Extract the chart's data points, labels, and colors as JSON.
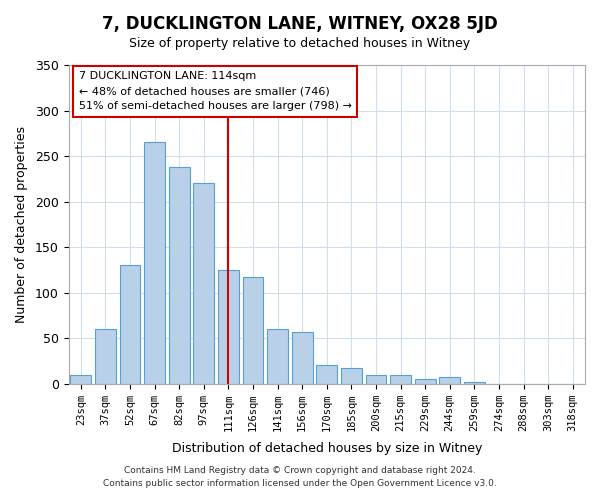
{
  "title": "7, DUCKLINGTON LANE, WITNEY, OX28 5JD",
  "subtitle": "Size of property relative to detached houses in Witney",
  "xlabel": "Distribution of detached houses by size in Witney",
  "ylabel": "Number of detached properties",
  "bar_labels": [
    "23sqm",
    "37sqm",
    "52sqm",
    "67sqm",
    "82sqm",
    "97sqm",
    "111sqm",
    "126sqm",
    "141sqm",
    "156sqm",
    "170sqm",
    "185sqm",
    "200sqm",
    "215sqm",
    "229sqm",
    "244sqm",
    "259sqm",
    "274sqm",
    "288sqm",
    "303sqm",
    "318sqm"
  ],
  "bar_values": [
    10,
    60,
    130,
    265,
    238,
    220,
    125,
    117,
    60,
    57,
    21,
    17,
    9,
    10,
    5,
    7,
    2,
    0,
    0,
    0,
    0
  ],
  "bar_color": "#b8d0e8",
  "bar_edge_color": "#5a9fd4",
  "vline_x_index": 6,
  "vline_color": "#cc0000",
  "ylim": [
    0,
    350
  ],
  "yticks": [
    0,
    50,
    100,
    150,
    200,
    250,
    300,
    350
  ],
  "annotation_title": "7 DUCKLINGTON LANE: 114sqm",
  "annotation_line1": "← 48% of detached houses are smaller (746)",
  "annotation_line2": "51% of semi-detached houses are larger (798) →",
  "annotation_box_color": "#ffffff",
  "annotation_box_edge": "#cc0000",
  "footer_line1": "Contains HM Land Registry data © Crown copyright and database right 2024.",
  "footer_line2": "Contains public sector information licensed under the Open Government Licence v3.0.",
  "background_color": "#ffffff",
  "grid_color": "#d0dff0"
}
